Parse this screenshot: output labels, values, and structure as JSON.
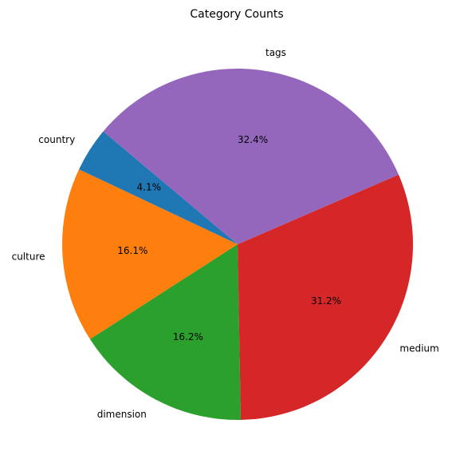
{
  "chart_data": {
    "type": "pie",
    "title": "Category Counts",
    "labels": [
      "country",
      "culture",
      "dimension",
      "medium",
      "tags"
    ],
    "values": [
      4.1,
      16.1,
      16.2,
      31.2,
      32.4
    ],
    "percent_labels": [
      "4.1%",
      "16.1%",
      "16.2%",
      "31.2%",
      "32.4%"
    ],
    "colors": [
      "#1f77b4",
      "#ff7f0e",
      "#2ca02c",
      "#d62728",
      "#9467bd"
    ],
    "start_angle_deg": 140,
    "direction": "counterclockwise"
  }
}
